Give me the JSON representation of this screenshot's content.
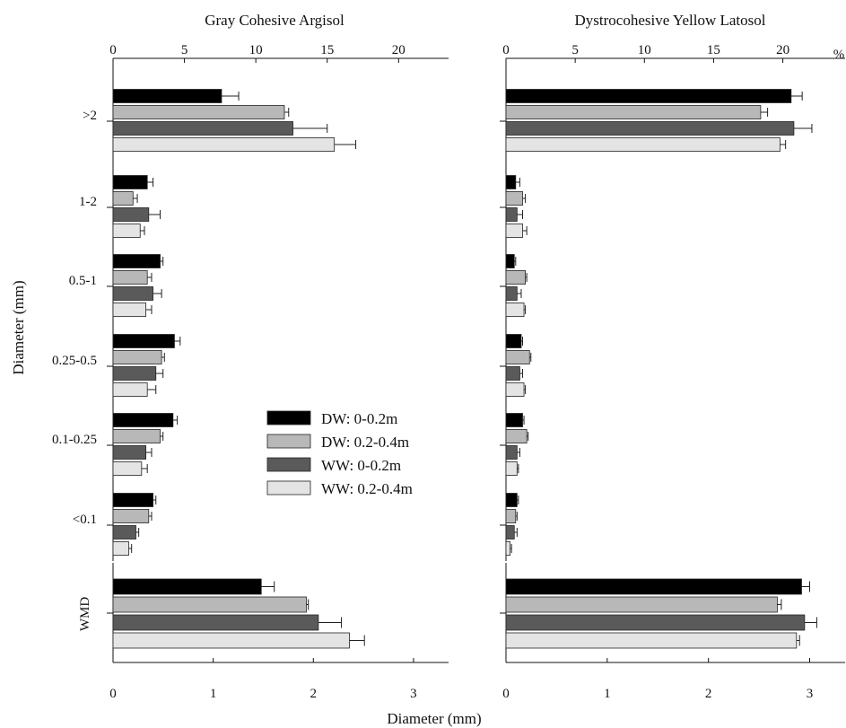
{
  "chart_data": {
    "type": "bar",
    "orientation": "horizontal",
    "xlabel": "Diameter (mm)",
    "ylabel": "Diameter (mm)",
    "top_axis": {
      "ticks": [
        "0",
        "5",
        "10",
        "15",
        "20"
      ],
      "unit": "%"
    },
    "bottom_axis": {
      "ticks": [
        "0",
        "1",
        "2",
        "3"
      ]
    },
    "categories": [
      ">2",
      "1-2",
      "0.5-1",
      "0.25-0.5",
      "0.1-0.25",
      "<0.1"
    ],
    "wmd_category": "WMD",
    "series_names": [
      "DW: 0-0.2m",
      "DW: 0.2-0.4m",
      "WW: 0-0.2m",
      "WW: 0.2-0.4m"
    ],
    "colors": [
      "#000000",
      "#b8b8b8",
      "#5a5a5a",
      "#e4e4e4"
    ],
    "legend_position": "center of left panel",
    "panels": [
      {
        "title": "Gray Cohesive Argisol",
        "percent_range": [
          0,
          23.5
        ],
        "wmd_range": [
          0,
          3.35
        ],
        "percent_values": [
          [
            7.6,
            12.0,
            12.6,
            15.5
          ],
          [
            2.4,
            1.4,
            2.5,
            1.9
          ],
          [
            3.3,
            2.4,
            2.8,
            2.3
          ],
          [
            4.3,
            3.4,
            3.0,
            2.4
          ],
          [
            4.2,
            3.3,
            2.3,
            2.0
          ],
          [
            2.8,
            2.5,
            1.6,
            1.1
          ]
        ],
        "percent_errors": [
          [
            1.2,
            0.3,
            2.4,
            1.5
          ],
          [
            0.4,
            0.3,
            0.8,
            0.3
          ],
          [
            0.2,
            0.3,
            0.6,
            0.4
          ],
          [
            0.4,
            0.2,
            0.5,
            0.6
          ],
          [
            0.3,
            0.2,
            0.4,
            0.4
          ],
          [
            0.2,
            0.2,
            0.2,
            0.2
          ]
        ],
        "wmd_values": [
          1.48,
          1.93,
          2.05,
          2.36
        ],
        "wmd_errors": [
          0.13,
          0.02,
          0.23,
          0.15
        ]
      },
      {
        "title": "Dystrocohesive Yellow Latosol",
        "percent_range": [
          0,
          24.5
        ],
        "wmd_range": [
          0,
          3.35
        ],
        "percent_values": [
          [
            20.6,
            18.4,
            20.8,
            19.8
          ],
          [
            0.7,
            1.2,
            0.8,
            1.2
          ],
          [
            0.6,
            1.4,
            0.8,
            1.3
          ],
          [
            1.1,
            1.7,
            1.0,
            1.3
          ],
          [
            1.2,
            1.5,
            0.8,
            0.8
          ],
          [
            0.8,
            0.7,
            0.6,
            0.3
          ]
        ],
        "percent_errors": [
          [
            0.8,
            0.5,
            1.3,
            0.4
          ],
          [
            0.3,
            0.2,
            0.4,
            0.3
          ],
          [
            0.1,
            0.1,
            0.3,
            0.1
          ],
          [
            0.1,
            0.1,
            0.2,
            0.1
          ],
          [
            0.1,
            0.1,
            0.2,
            0.1
          ],
          [
            0.1,
            0.1,
            0.2,
            0.1
          ]
        ],
        "wmd_values": [
          2.92,
          2.68,
          2.95,
          2.87
        ],
        "wmd_errors": [
          0.08,
          0.04,
          0.12,
          0.03
        ]
      }
    ]
  }
}
